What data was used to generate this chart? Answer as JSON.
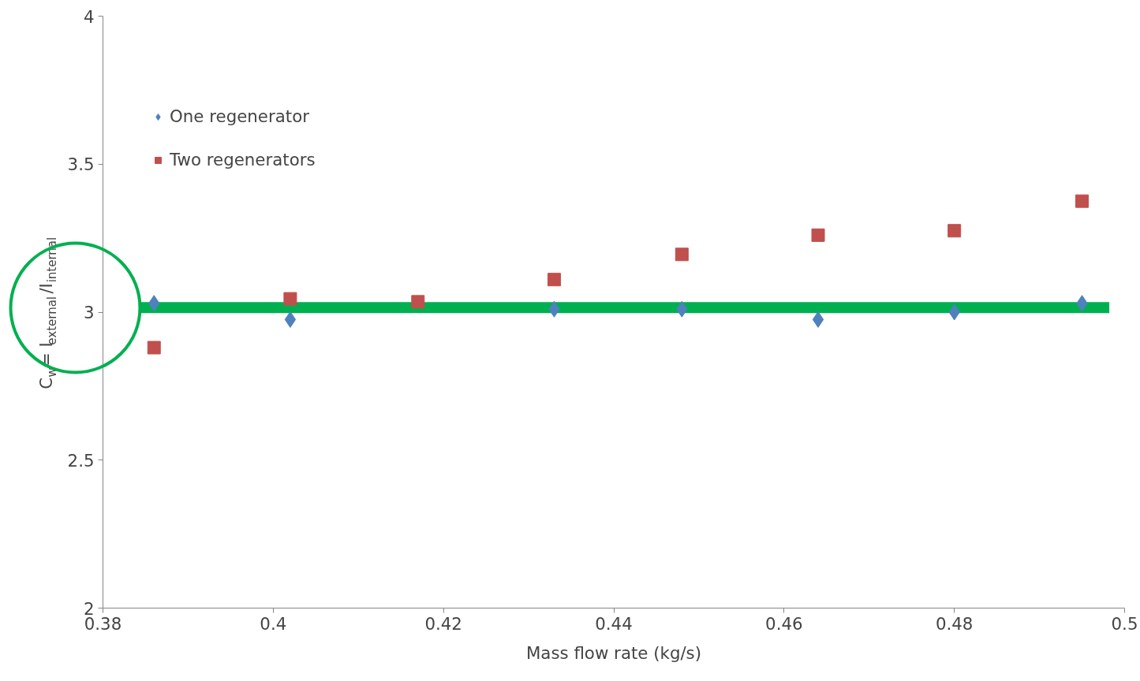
{
  "chart_data": {
    "type": "scatter",
    "xlabel": "Mass flow rate (kg/s)",
    "ylabel": "C$_{w}$= I$_{external}$/I$_{internal}$",
    "xlim": [
      0.38,
      0.5
    ],
    "xticks": [
      0.38,
      0.4,
      0.42,
      0.44,
      0.46,
      0.48,
      0.5
    ],
    "ylim": [
      2,
      4
    ],
    "yticks": [
      2,
      2.5,
      3,
      3.5,
      4
    ],
    "grid": false,
    "legend": "top left",
    "series": [
      {
        "name": "One regenerator",
        "color": "#4f81bd",
        "marker": "diamond",
        "x": [
          0.386,
          0.402,
          0.433,
          0.448,
          0.464,
          0.48,
          0.495
        ],
        "values": [
          3.03,
          2.975,
          3.01,
          3.01,
          2.975,
          3.0,
          3.03
        ]
      },
      {
        "name": "Two regenerators",
        "color": "#c0504d",
        "marker": "square",
        "x": [
          0.386,
          0.402,
          0.417,
          0.433,
          0.448,
          0.464,
          0.48,
          0.495
        ],
        "values": [
          2.88,
          3.045,
          3.035,
          3.11,
          3.195,
          3.26,
          3.275,
          3.375
        ]
      },
      {
        "type": "line",
        "color": "#00b050",
        "x": [
          0.3842,
          0.4982
        ],
        "values": [
          3.015,
          3.015
        ]
      }
    ]
  }
}
